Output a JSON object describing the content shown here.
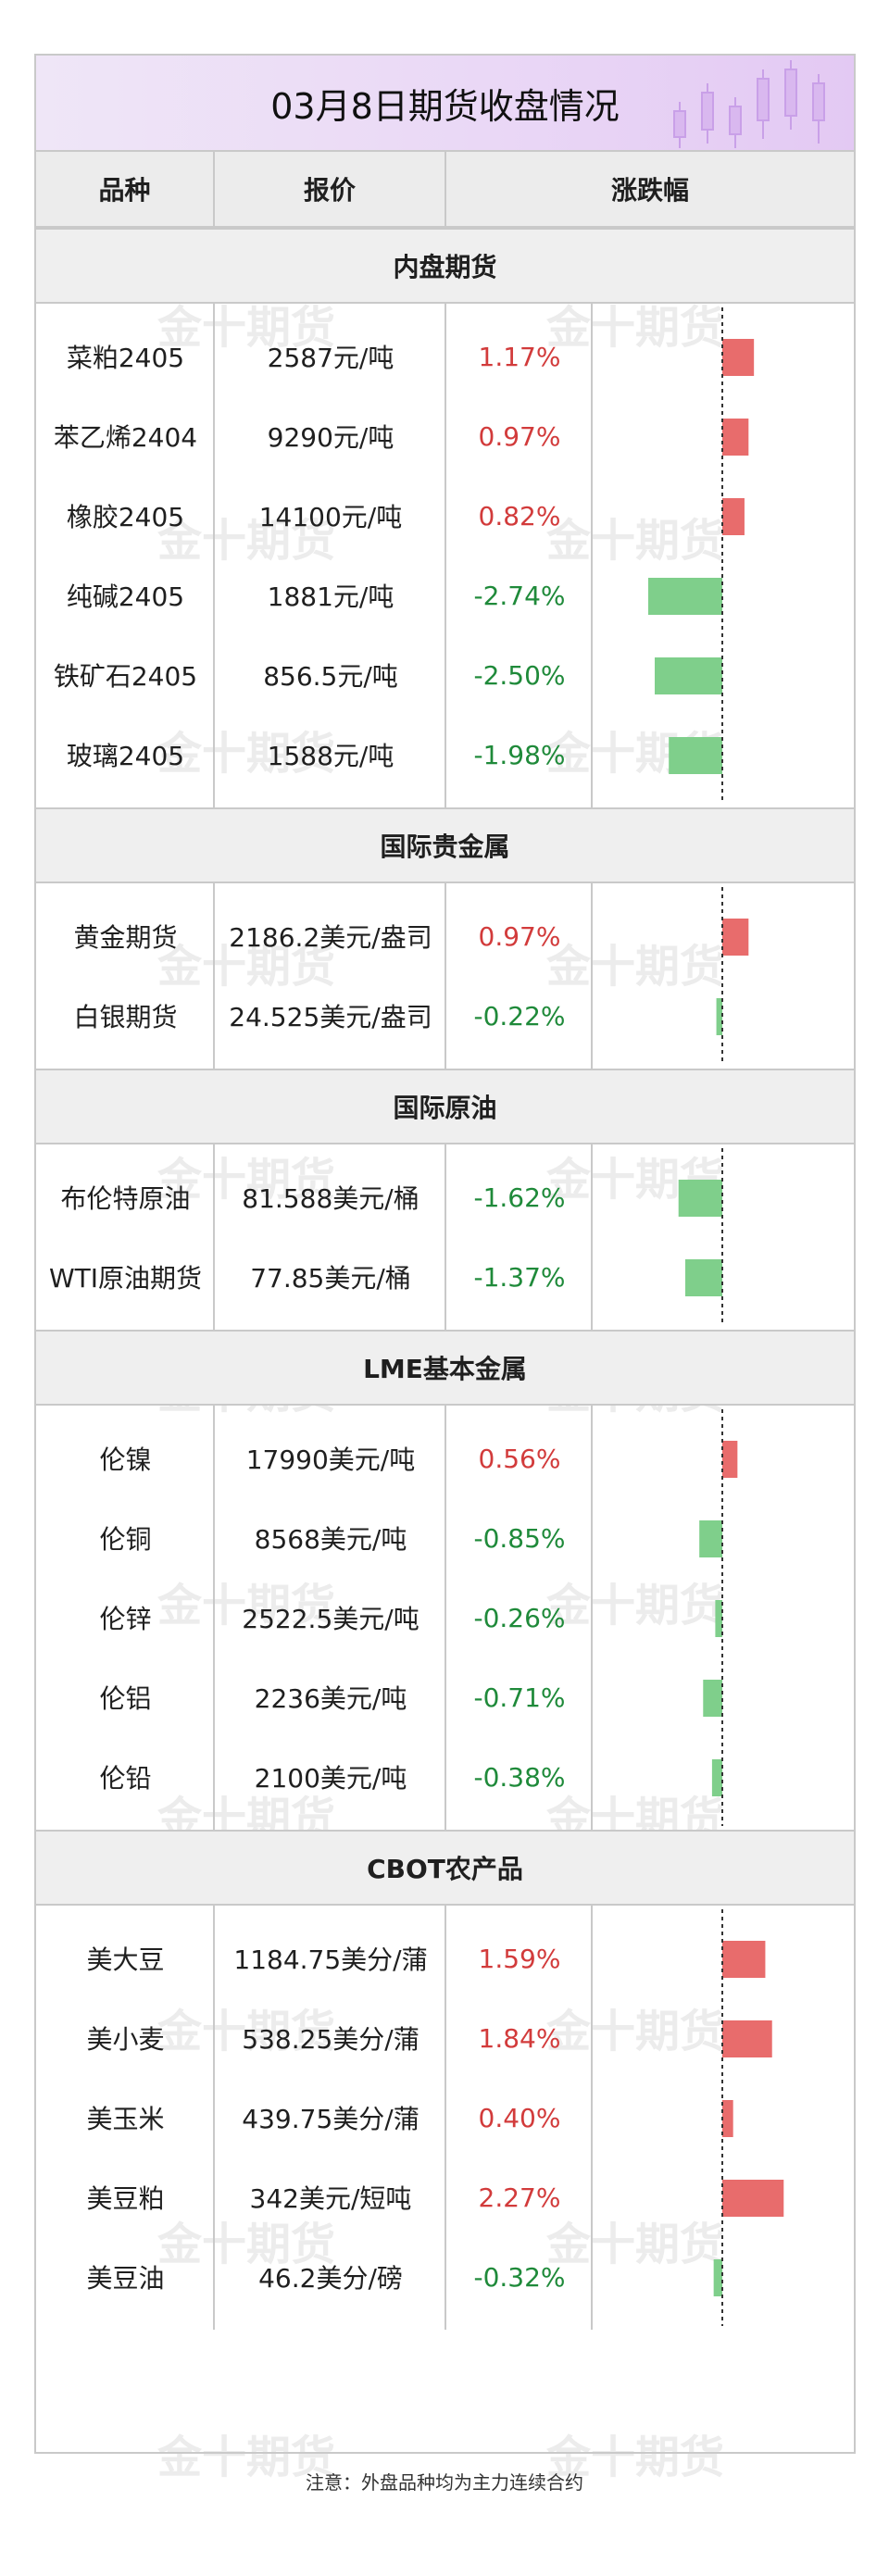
{
  "title": "03月8日期货收盘情况",
  "headers": {
    "name": "品种",
    "price": "报价",
    "change": "涨跌幅"
  },
  "watermark": "金十期货",
  "colors": {
    "up": "#e86c6c",
    "down": "#7fcf8b",
    "up_text": "#d23b3b",
    "down_text": "#1f8a3a",
    "title_bg": "#ead8f6"
  },
  "bar_scale_max_pct": 2.74,
  "sections": [
    {
      "name": "内盘期货",
      "rows": [
        {
          "name": "菜粕2405",
          "price": "2587元/吨",
          "change": "1.17%",
          "value": 1.17
        },
        {
          "name": "苯乙烯2404",
          "price": "9290元/吨",
          "change": "0.97%",
          "value": 0.97
        },
        {
          "name": "橡胶2405",
          "price": "14100元/吨",
          "change": "0.82%",
          "value": 0.82
        },
        {
          "name": "纯碱2405",
          "price": "1881元/吨",
          "change": "-2.74%",
          "value": -2.74
        },
        {
          "name": "铁矿石2405",
          "price": "856.5元/吨",
          "change": "-2.50%",
          "value": -2.5
        },
        {
          "name": "玻璃2405",
          "price": "1588元/吨",
          "change": "-1.98%",
          "value": -1.98
        }
      ]
    },
    {
      "name": "国际贵金属",
      "rows": [
        {
          "name": "黄金期货",
          "price": "2186.2美元/盎司",
          "change": "0.97%",
          "value": 0.97
        },
        {
          "name": "白银期货",
          "price": "24.525美元/盎司",
          "change": "-0.22%",
          "value": -0.22
        }
      ]
    },
    {
      "name": "国际原油",
      "rows": [
        {
          "name": "布伦特原油",
          "price": "81.588美元/桶",
          "change": "-1.62%",
          "value": -1.62
        },
        {
          "name": "WTI原油期货",
          "price": "77.85美元/桶",
          "change": "-1.37%",
          "value": -1.37
        }
      ]
    },
    {
      "name": "LME基本金属",
      "rows": [
        {
          "name": "伦镍",
          "price": "17990美元/吨",
          "change": "0.56%",
          "value": 0.56
        },
        {
          "name": "伦铜",
          "price": "8568美元/吨",
          "change": "-0.85%",
          "value": -0.85
        },
        {
          "name": "伦锌",
          "price": "2522.5美元/吨",
          "change": "-0.26%",
          "value": -0.26
        },
        {
          "name": "伦铝",
          "price": "2236美元/吨",
          "change": "-0.71%",
          "value": -0.71
        },
        {
          "name": "伦铅",
          "price": "2100美元/吨",
          "change": "-0.38%",
          "value": -0.38
        }
      ]
    },
    {
      "name": "CBOT农产品",
      "rows": [
        {
          "name": "美大豆",
          "price": "1184.75美分/蒲",
          "change": "1.59%",
          "value": 1.59
        },
        {
          "name": "美小麦",
          "price": "538.25美分/蒲",
          "change": "1.84%",
          "value": 1.84
        },
        {
          "name": "美玉米",
          "price": "439.75美分/蒲",
          "change": "0.40%",
          "value": 0.4
        },
        {
          "name": "美豆粕",
          "price": "342美元/短吨",
          "change": "2.27%",
          "value": 2.27
        },
        {
          "name": "美豆油",
          "price": "46.2美分/磅",
          "change": "-0.32%",
          "value": -0.32
        }
      ]
    }
  ],
  "footer": "注意：外盘品种均为主力连续合约",
  "chart_data": {
    "type": "bar",
    "orientation": "horizontal",
    "categories": [
      "菜粕2405",
      "苯乙烯2404",
      "橡胶2405",
      "纯碱2405",
      "铁矿石2405",
      "玻璃2405",
      "黄金期货",
      "白银期货",
      "布伦特原油",
      "WTI原油期货",
      "伦镍",
      "伦铜",
      "伦锌",
      "伦铝",
      "伦铅",
      "美大豆",
      "美小麦",
      "美玉米",
      "美豆粕",
      "美豆油"
    ],
    "values": [
      1.17,
      0.97,
      0.82,
      -2.74,
      -2.5,
      -1.98,
      0.97,
      -0.22,
      -1.62,
      -1.37,
      0.56,
      -0.85,
      -0.26,
      -0.71,
      -0.38,
      1.59,
      1.84,
      0.4,
      2.27,
      -0.32
    ],
    "unit": "%"
  }
}
